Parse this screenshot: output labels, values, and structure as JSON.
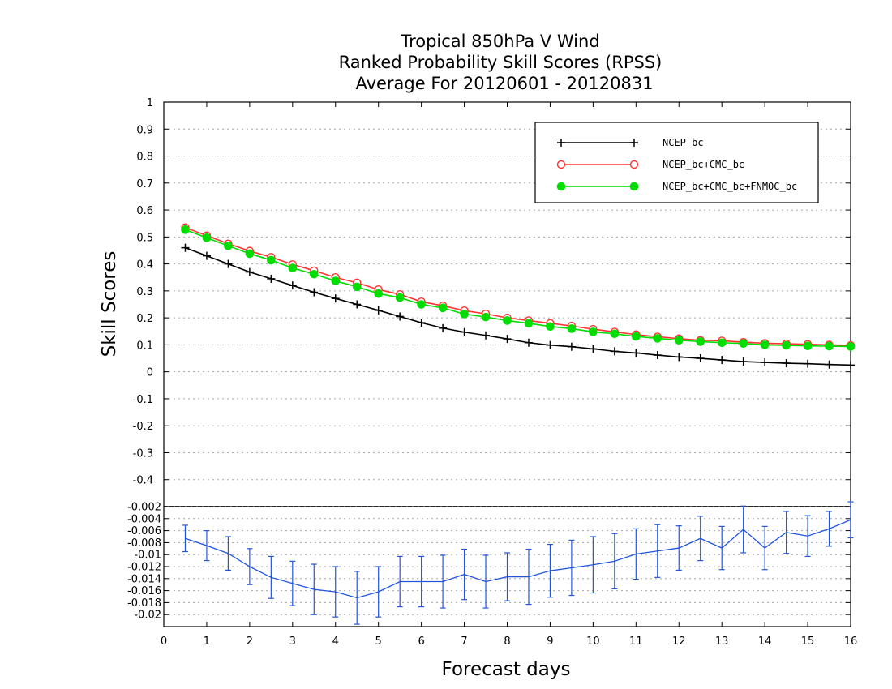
{
  "chart_data": [
    {
      "type": "line",
      "title": "Tropical 850hPa V Wind",
      "subtitle": "Ranked Probability Skill Scores (RPSS)",
      "subtitle2": "Average For 20120601 - 20120831",
      "xlabel": "Forecast days",
      "ylabel": "Skill Scores",
      "xlim": [
        0,
        16
      ],
      "ylim": [
        -0.5,
        1
      ],
      "yticks": [
        "-0.4",
        "-0.3",
        "-0.2",
        "-0.1",
        "0",
        "0.1",
        "0.2",
        "0.3",
        "0.4",
        "0.5",
        "0.6",
        "0.7",
        "0.8",
        "0.9",
        "1"
      ],
      "grid": true,
      "legend_position": "top-right",
      "x": [
        0.5,
        1,
        1.5,
        2,
        2.5,
        3,
        3.5,
        4,
        4.5,
        5,
        5.5,
        6,
        6.5,
        7,
        7.5,
        8,
        8.5,
        9,
        9.5,
        10,
        10.5,
        11,
        11.5,
        12,
        12.5,
        13,
        13.5,
        14,
        14.5,
        15,
        15.5,
        16
      ],
      "series": [
        {
          "name": "NCEP_bc",
          "color": "#000000",
          "marker": "plus",
          "values": [
            0.46,
            0.43,
            0.4,
            0.37,
            0.345,
            0.32,
            0.295,
            0.272,
            0.25,
            0.228,
            0.205,
            0.182,
            0.162,
            0.147,
            0.135,
            0.122,
            0.108,
            0.099,
            0.093,
            0.085,
            0.076,
            0.07,
            0.062,
            0.055,
            0.05,
            0.044,
            0.038,
            0.035,
            0.032,
            0.03,
            0.027,
            0.025
          ]
        },
        {
          "name": "NCEP_bc+CMC_bc",
          "color": "#ff3333",
          "marker": "open-circle",
          "values": [
            0.535,
            0.505,
            0.475,
            0.448,
            0.425,
            0.398,
            0.375,
            0.35,
            0.33,
            0.305,
            0.287,
            0.26,
            0.245,
            0.227,
            0.215,
            0.2,
            0.19,
            0.18,
            0.17,
            0.158,
            0.148,
            0.138,
            0.13,
            0.123,
            0.117,
            0.115,
            0.11,
            0.106,
            0.104,
            0.102,
            0.1,
            0.098
          ]
        },
        {
          "name": "NCEP_bc+CMC_bc+FNMOC_bc",
          "color": "#00dd00",
          "marker": "filled-circle",
          "values": [
            0.527,
            0.497,
            0.467,
            0.438,
            0.414,
            0.385,
            0.362,
            0.337,
            0.315,
            0.29,
            0.275,
            0.25,
            0.237,
            0.214,
            0.203,
            0.19,
            0.18,
            0.168,
            0.16,
            0.148,
            0.141,
            0.131,
            0.124,
            0.117,
            0.112,
            0.108,
            0.105,
            0.1,
            0.098,
            0.096,
            0.095,
            0.094
          ]
        }
      ]
    },
    {
      "type": "line",
      "ylim": [
        -0.022,
        -0.002
      ],
      "yticks": [
        "-0.02",
        "-0.018",
        "-0.016",
        "-0.014",
        "-0.012",
        "-0.01",
        "-0.008",
        "-0.006",
        "-0.004",
        "-0.002"
      ],
      "xticks": [
        "0",
        "1",
        "2",
        "3",
        "4",
        "5",
        "6",
        "7",
        "8",
        "9",
        "10",
        "11",
        "12",
        "13",
        "14",
        "15",
        "16"
      ],
      "grid": true,
      "x": [
        0.5,
        1,
        1.5,
        2,
        2.5,
        3,
        3.5,
        4,
        4.5,
        5,
        5.5,
        6,
        6.5,
        7,
        7.5,
        8,
        8.5,
        9,
        9.5,
        10,
        10.5,
        11,
        11.5,
        12,
        12.5,
        13,
        13.5,
        14,
        14.5,
        15,
        15.5,
        16
      ],
      "series": [
        {
          "color": "#2255dd",
          "values": [
            -0.0073,
            -0.0085,
            -0.0098,
            -0.012,
            -0.0138,
            -0.0148,
            -0.0158,
            -0.0162,
            -0.0172,
            -0.0162,
            -0.0145,
            -0.0145,
            -0.0145,
            -0.0133,
            -0.0145,
            -0.0137,
            -0.0137,
            -0.0127,
            -0.0122,
            -0.0117,
            -0.0111,
            -0.0099,
            -0.0094,
            -0.0089,
            -0.0073,
            -0.0089,
            -0.0058,
            -0.0089,
            -0.0063,
            -0.0069,
            -0.0057,
            -0.0042
          ],
          "error": [
            0.0022,
            0.0025,
            0.0028,
            0.003,
            0.0035,
            0.0037,
            0.0042,
            0.0042,
            0.0044,
            0.0042,
            0.0042,
            0.0042,
            0.0044,
            0.0042,
            0.0044,
            0.004,
            0.0046,
            0.0044,
            0.0046,
            0.0047,
            0.0046,
            0.0042,
            0.0044,
            0.0037,
            0.0037,
            0.0036,
            0.0039,
            0.0036,
            0.0035,
            0.0034,
            0.0029,
            0.003
          ]
        }
      ]
    }
  ]
}
